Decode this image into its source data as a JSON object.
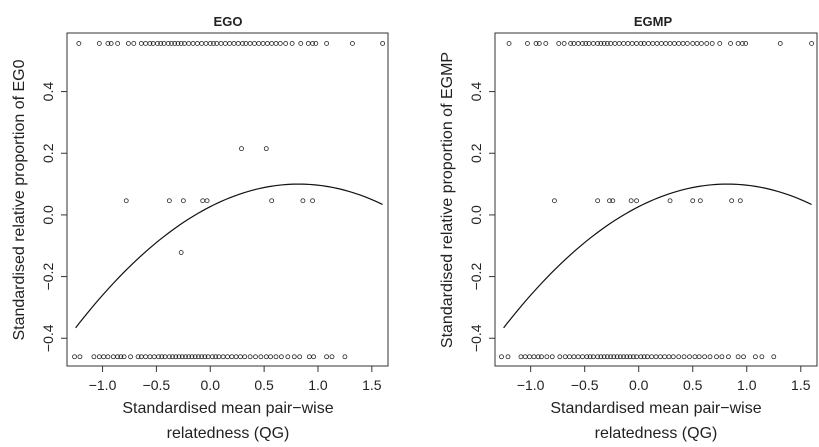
{
  "figure": {
    "x_label_line1": "Standardised mean pair−wise",
    "x_label_line2": "relatedness (QG)"
  },
  "chart_data": [
    {
      "type": "scatter",
      "title": "EGO",
      "xlabel": "Standardised mean pair−wise relatedness (QG)",
      "ylabel": "Standardised relative proportion of EG0",
      "xlim": [
        -1.33,
        1.65
      ],
      "ylim": [
        -0.49,
        0.59
      ],
      "x_ticks": [
        -1.0,
        -0.5,
        0.0,
        0.5,
        1.0,
        1.5
      ],
      "x_tick_labels": [
        "−1.0",
        "−0.5",
        "0.0",
        "0.5",
        "1.0",
        "1.5"
      ],
      "y_ticks": [
        -0.4,
        -0.2,
        0.0,
        0.2,
        0.4
      ],
      "y_tick_labels": [
        "−0.4",
        "−0.2",
        "0.0",
        "0.2",
        "0.4"
      ],
      "grid": false,
      "point_groups": [
        {
          "y": 0.556,
          "x": [
            -1.22,
            -1.03,
            -0.95,
            -0.92,
            -0.86,
            -0.76,
            -0.71,
            -0.64,
            -0.6,
            -0.56,
            -0.53,
            -0.49,
            -0.46,
            -0.43,
            -0.39,
            -0.36,
            -0.33,
            -0.3,
            -0.27,
            -0.24,
            -0.2,
            -0.16,
            -0.12,
            -0.08,
            -0.04,
            0.0,
            0.03,
            0.06,
            0.1,
            0.14,
            0.18,
            0.22,
            0.26,
            0.3,
            0.33,
            0.37,
            0.41,
            0.45,
            0.49,
            0.53,
            0.57,
            0.61,
            0.65,
            0.7,
            0.76,
            0.84,
            0.91,
            0.95,
            0.98,
            1.08,
            1.32,
            1.6
          ]
        },
        {
          "y": 0.215,
          "x": [
            0.29,
            0.52
          ]
        },
        {
          "y": 0.046,
          "x": [
            -0.78,
            -0.38,
            -0.25,
            -0.07,
            -0.03,
            0.57,
            0.86,
            0.95
          ]
        },
        {
          "y": -0.122,
          "x": [
            -0.27
          ]
        },
        {
          "y": -0.46,
          "x": [
            -1.26,
            -1.21,
            -1.08,
            -1.03,
            -0.99,
            -0.95,
            -0.9,
            -0.86,
            -0.83,
            -0.8,
            -0.74,
            -0.67,
            -0.64,
            -0.6,
            -0.56,
            -0.52,
            -0.48,
            -0.45,
            -0.42,
            -0.38,
            -0.35,
            -0.32,
            -0.29,
            -0.26,
            -0.23,
            -0.2,
            -0.17,
            -0.14,
            -0.11,
            -0.08,
            -0.05,
            -0.02,
            0.02,
            0.05,
            0.08,
            0.12,
            0.16,
            0.2,
            0.24,
            0.28,
            0.32,
            0.37,
            0.42,
            0.47,
            0.52,
            0.56,
            0.61,
            0.66,
            0.72,
            0.78,
            0.83,
            0.92,
            0.96,
            1.08,
            1.13,
            1.25
          ]
        }
      ],
      "fitted_curve": {
        "type": "quadratic",
        "x_range": [
          -1.25,
          1.6
        ],
        "vertex_x": 0.82,
        "vertex_y": 0.1,
        "a": -0.1088
      }
    },
    {
      "type": "scatter",
      "title": "EGMP",
      "xlabel": "Standardised mean pair−wise relatedness (QG)",
      "ylabel": "Standardised relative proportion of EGMP",
      "xlim": [
        -1.33,
        1.65
      ],
      "ylim": [
        -0.49,
        0.59
      ],
      "x_ticks": [
        -1.0,
        -0.5,
        0.0,
        0.5,
        1.0,
        1.5
      ],
      "x_tick_labels": [
        "−1.0",
        "−0.5",
        "0.0",
        "0.5",
        "1.0",
        "1.5"
      ],
      "y_ticks": [
        -0.4,
        -0.2,
        0.0,
        0.2,
        0.4
      ],
      "y_tick_labels": [
        "−0.4",
        "−0.2",
        "0.0",
        "0.2",
        "0.4"
      ],
      "grid": false,
      "point_groups": [
        {
          "y": 0.556,
          "x": [
            -1.2,
            -1.03,
            -0.95,
            -0.92,
            -0.86,
            -0.74,
            -0.69,
            -0.63,
            -0.6,
            -0.56,
            -0.52,
            -0.49,
            -0.46,
            -0.42,
            -0.38,
            -0.35,
            -0.32,
            -0.29,
            -0.26,
            -0.22,
            -0.18,
            -0.14,
            -0.1,
            -0.06,
            -0.02,
            0.02,
            0.05,
            0.09,
            0.13,
            0.17,
            0.21,
            0.25,
            0.29,
            0.33,
            0.37,
            0.41,
            0.45,
            0.5,
            0.54,
            0.58,
            0.63,
            0.68,
            0.75,
            0.85,
            0.92,
            0.96,
            0.99,
            1.31,
            1.6
          ]
        },
        {
          "y": 0.046,
          "x": [
            -0.78,
            -0.38,
            -0.27,
            -0.24,
            -0.07,
            -0.02,
            0.29,
            0.5,
            0.57,
            0.86,
            0.94
          ]
        },
        {
          "y": -0.46,
          "x": [
            -1.27,
            -1.21,
            -1.09,
            -1.05,
            -1.01,
            -0.97,
            -0.93,
            -0.9,
            -0.85,
            -0.8,
            -0.73,
            -0.68,
            -0.64,
            -0.6,
            -0.56,
            -0.52,
            -0.48,
            -0.45,
            -0.42,
            -0.38,
            -0.35,
            -0.32,
            -0.29,
            -0.26,
            -0.23,
            -0.2,
            -0.17,
            -0.14,
            -0.11,
            -0.08,
            -0.05,
            -0.02,
            0.02,
            0.05,
            0.08,
            0.12,
            0.16,
            0.2,
            0.24,
            0.28,
            0.32,
            0.37,
            0.42,
            0.47,
            0.52,
            0.56,
            0.61,
            0.66,
            0.72,
            0.77,
            0.83,
            0.92,
            0.97,
            1.08,
            1.14,
            1.25
          ]
        }
      ],
      "fitted_curve": {
        "type": "quadratic",
        "x_range": [
          -1.25,
          1.6
        ],
        "vertex_x": 0.82,
        "vertex_y": 0.1,
        "a": -0.1088
      }
    }
  ]
}
